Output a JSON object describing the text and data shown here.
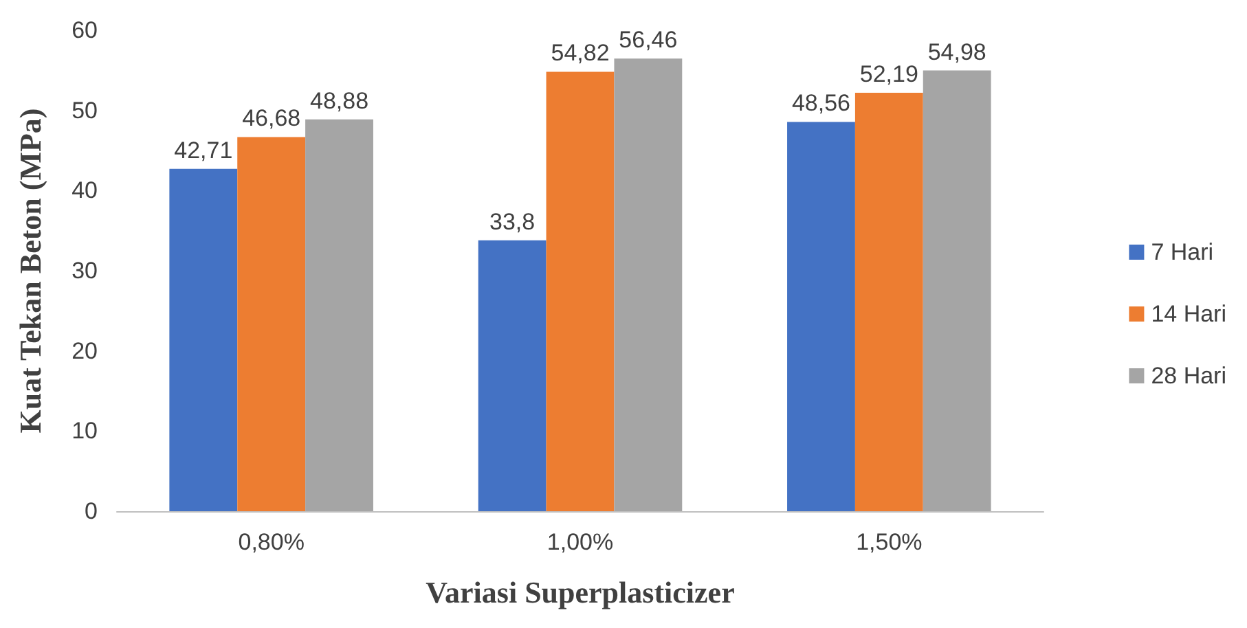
{
  "chart_data": {
    "type": "bar",
    "xlabel": "Variasi Superplasticizer",
    "ylabel": "Kuat Tekan Beton (MPa)",
    "categories": [
      "0,80%",
      "1,00%",
      "1,50%"
    ],
    "series": [
      {
        "name": "7 Hari",
        "color": "#4472c4",
        "values": [
          42.71,
          33.8,
          48.56
        ],
        "value_labels": [
          "42,71",
          "33,8",
          "48,56"
        ]
      },
      {
        "name": "14 Hari",
        "color": "#ed7d31",
        "values": [
          46.68,
          54.82,
          52.19
        ],
        "value_labels": [
          "46,68",
          "54,82",
          "52,19"
        ]
      },
      {
        "name": "28 Hari",
        "color": "#a5a5a5",
        "values": [
          48.88,
          56.46,
          54.98
        ],
        "value_labels": [
          "48,88",
          "56,46",
          "54,98"
        ]
      }
    ],
    "ylim": [
      0,
      60
    ],
    "yticks": [
      0,
      10,
      20,
      30,
      40,
      50,
      60
    ],
    "grid": false,
    "legend": "right"
  }
}
